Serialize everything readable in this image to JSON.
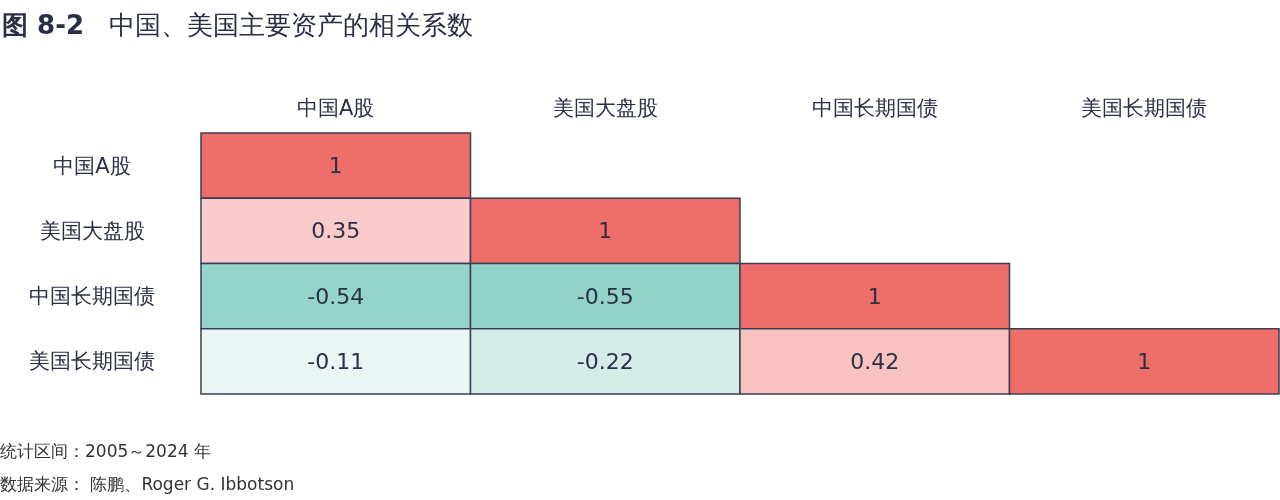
{
  "chart_data": {
    "type": "heatmap",
    "title": "图 8-2  中国、美国主要资产的相关系数",
    "categories": [
      "中国A股",
      "美国大盘股",
      "中国长期国债",
      "美国长期国债"
    ],
    "y_categories": [
      "中国A股",
      "美国大盘股",
      "中国长期国债",
      "美国长期国债"
    ],
    "cells": [
      [
        1,
        null,
        null,
        null
      ],
      [
        0.35,
        1,
        null,
        null
      ],
      [
        -0.54,
        -0.55,
        1,
        null
      ],
      [
        -0.11,
        -0.22,
        0.42,
        1
      ]
    ],
    "cell_labels": [
      [
        "1",
        null,
        null,
        null
      ],
      [
        "0.35",
        "1",
        null,
        null
      ],
      [
        "-0.54",
        "-0.55",
        "1",
        null
      ],
      [
        "-0.11",
        "-0.22",
        "0.42",
        "1"
      ]
    ],
    "colors": [
      "#93d3c7",
      "#ffffff",
      "#ee6e69"
    ],
    "data_labels": true,
    "annotations": [
      "统计区间：2005～2024 年",
      "数据来源： 陈鹏、Roger G. Ibbotson"
    ]
  }
}
